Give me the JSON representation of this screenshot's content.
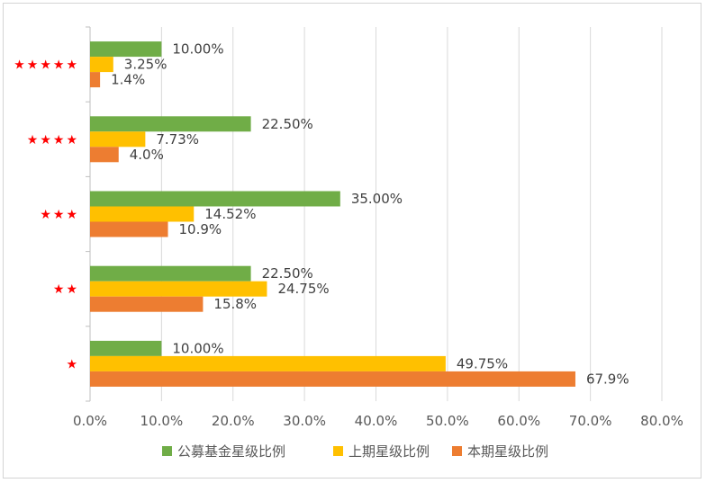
{
  "chart_data": {
    "type": "bar",
    "orientation": "horizontal",
    "categories": [
      "★★★★★",
      "★★★★",
      "★★★",
      "★★",
      "★"
    ],
    "series": [
      {
        "name": "公募基金星级比例",
        "color": "#70ad47",
        "values": [
          10.0,
          22.5,
          35.0,
          22.5,
          10.0
        ],
        "labels": [
          "10.00%",
          "22.50%",
          "35.00%",
          "22.50%",
          "10.00%"
        ]
      },
      {
        "name": "上期星级比例",
        "color": "#ffc000",
        "values": [
          3.25,
          7.73,
          14.52,
          24.75,
          49.75
        ],
        "labels": [
          "3.25%",
          "7.73%",
          "14.52%",
          "24.75%",
          "49.75%"
        ]
      },
      {
        "name": "本期星级比例",
        "color": "#ed7d31",
        "values": [
          1.4,
          4.0,
          10.9,
          15.8,
          67.9
        ],
        "labels": [
          "1.4%",
          "4.0%",
          "10.9%",
          "15.8%",
          "67.9%"
        ]
      }
    ],
    "xlim": [
      0,
      80
    ],
    "xticks": [
      0,
      10,
      20,
      30,
      40,
      50,
      60,
      70,
      80
    ],
    "xtick_labels": [
      "0.0%",
      "10.0%",
      "20.0%",
      "30.0%",
      "40.0%",
      "50.0%",
      "60.0%",
      "70.0%",
      "80.0%"
    ],
    "grid": true,
    "legend_position": "bottom",
    "category_label_color": "#ff0000",
    "gridline_color": "#d9d9d9",
    "axis_color": "#bfbfbf"
  }
}
